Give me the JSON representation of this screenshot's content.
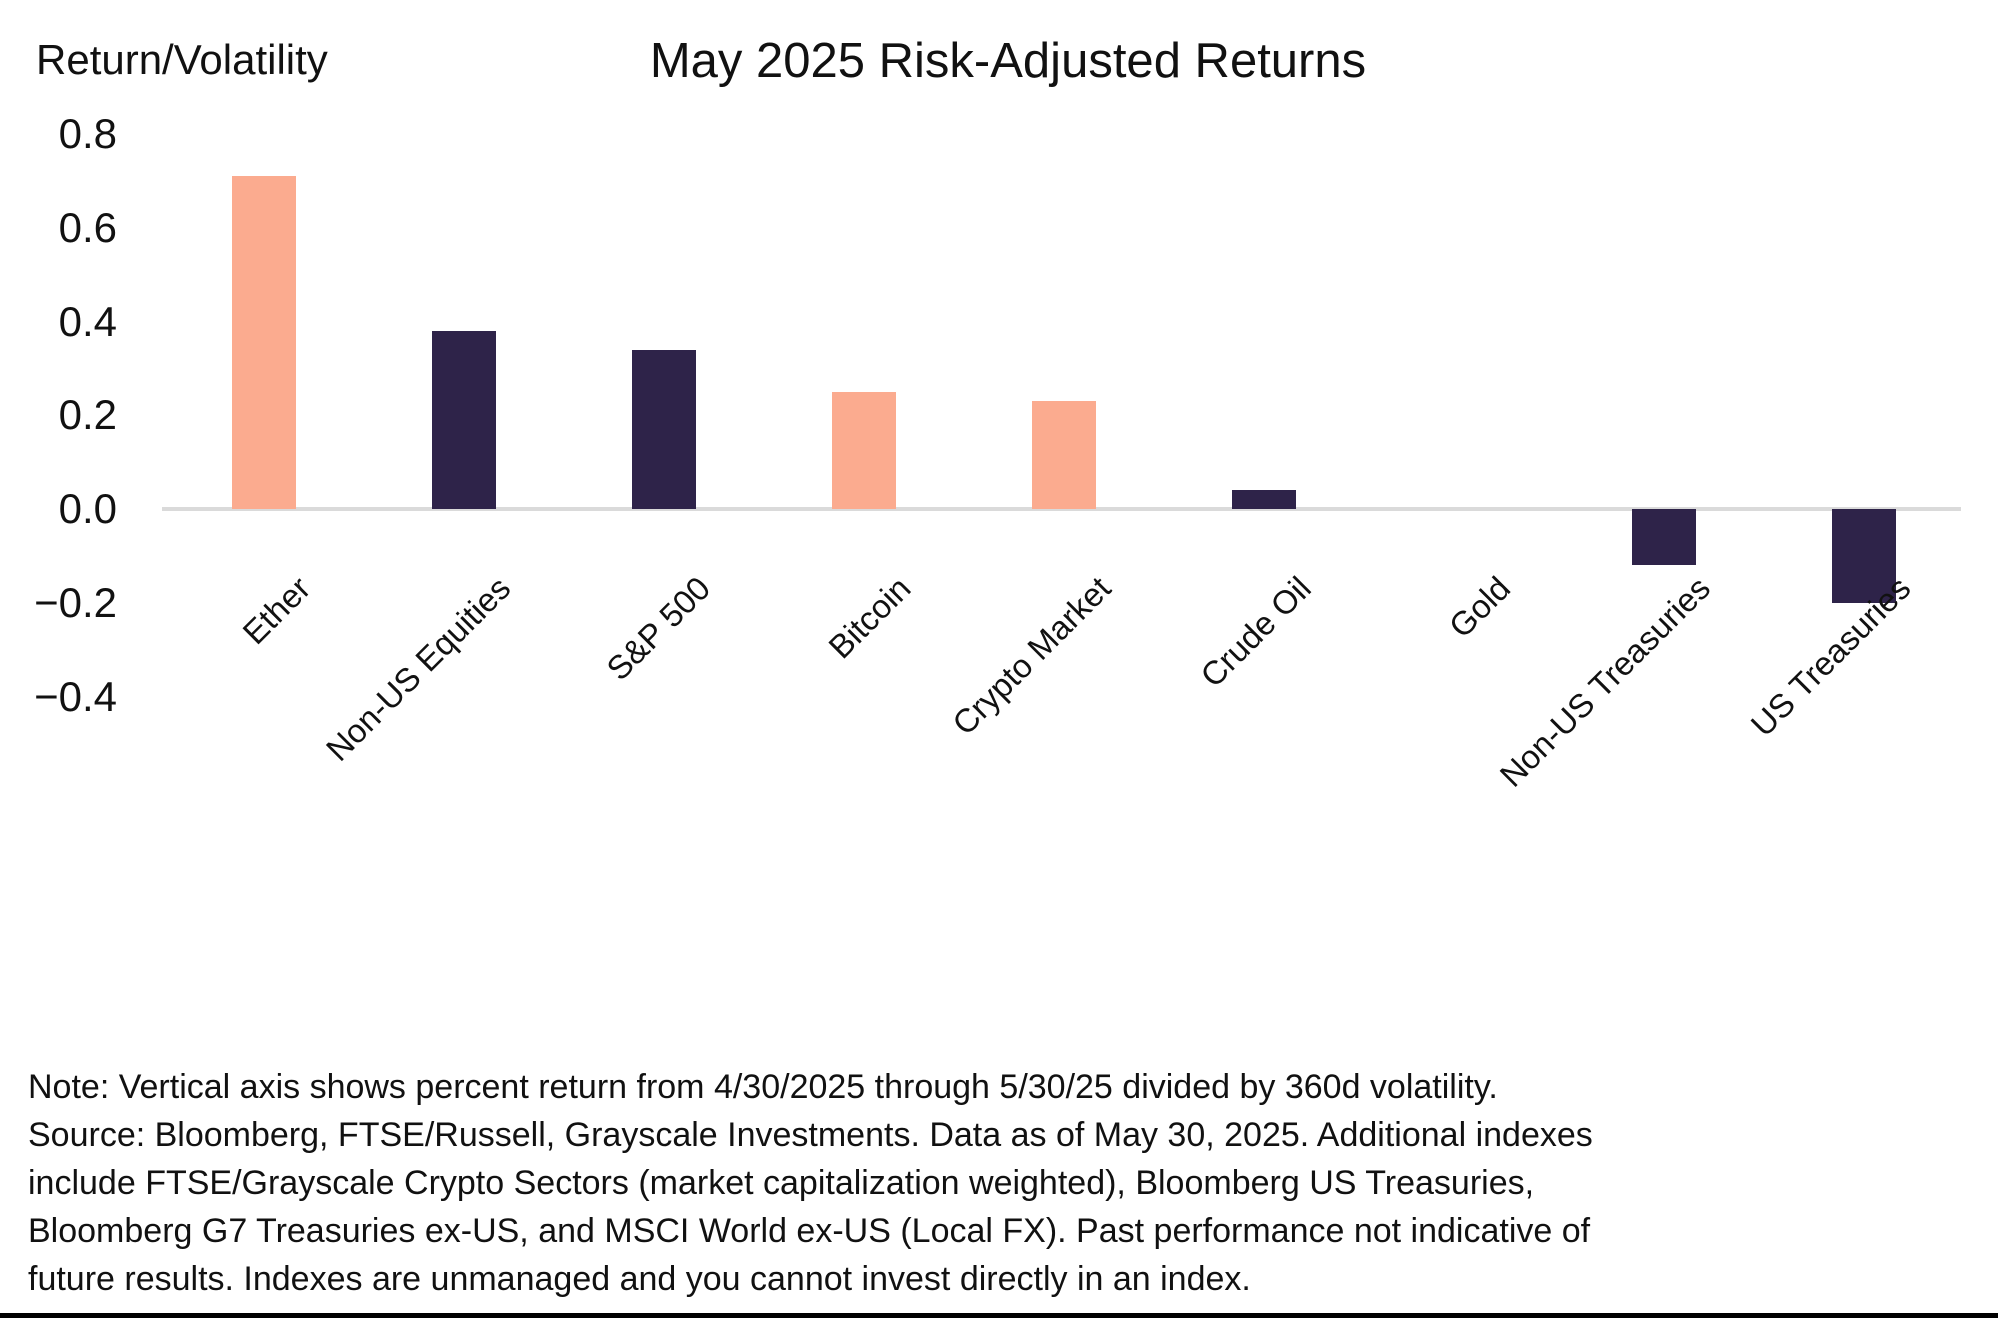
{
  "chart_data": {
    "type": "bar",
    "title": "May 2025 Risk-Adjusted Returns",
    "ylabel": "Return/Volatility",
    "categories": [
      "Ether",
      "Non-US Equities",
      "S&P 500",
      "Bitcoin",
      "Crypto Market",
      "Crude Oil",
      "Gold",
      "Non-US Treasuries",
      "US Treasuries"
    ],
    "values": [
      0.71,
      0.38,
      0.34,
      0.25,
      0.23,
      0.04,
      0.0,
      -0.12,
      -0.2
    ],
    "bar_color_keys": [
      "crypto",
      "traditional",
      "traditional",
      "crypto",
      "crypto",
      "traditional",
      "traditional",
      "traditional",
      "traditional"
    ],
    "color_map": {
      "crypto": "#FBAB8F",
      "traditional": "#2E2349"
    },
    "yticks": [
      0.8,
      0.6,
      0.4,
      0.2,
      0.0,
      -0.2,
      -0.4
    ],
    "ytick_labels": [
      "0.8",
      "0.6",
      "0.4",
      "0.2",
      "0.0",
      "−0.2",
      "−0.4"
    ],
    "ylim": [
      -0.4,
      0.8
    ],
    "grid": "zero-line-only",
    "legend_position": "none",
    "xlabel": ""
  },
  "note": {
    "lines": [
      "Note: Vertical axis shows percent return from 4/30/2025 through 5/30/25 divided by 360d volatility.",
      "Source: Bloomberg, FTSE/Russell, Grayscale Investments. Data as of May 30, 2025. Additional indexes",
      "include FTSE/Grayscale Crypto Sectors (market capitalization weighted), Bloomberg US Treasuries,",
      "Bloomberg G7 Treasuries ex-US, and MSCI World ex-US (Local FX). Past performance not indicative of",
      "future results. Indexes are unmanaged and you cannot invest directly in an index."
    ]
  },
  "colors": {
    "background": "#FFFFFF",
    "zero_line": "#DADADA",
    "text": "#111111",
    "bottom_rule": "#000000"
  }
}
